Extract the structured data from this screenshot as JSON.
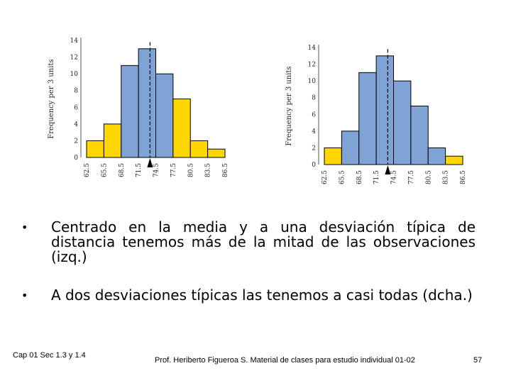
{
  "chart_data": [
    {
      "type": "bar",
      "ylabel": "Frequency per 3 units",
      "ylim": [
        0,
        14
      ],
      "yticks": [
        "0",
        "2",
        "4",
        "6",
        "8",
        "10",
        "12",
        "14"
      ],
      "edges": [
        "62.5",
        "65.5",
        "68.5",
        "71.5",
        "74.5",
        "77.5",
        "80.5",
        "83.5",
        "86.5"
      ],
      "values": [
        2,
        4,
        11,
        13,
        10,
        7,
        2,
        1
      ],
      "highlight": [
        false,
        false,
        true,
        true,
        true,
        false,
        false,
        false
      ],
      "mean": 73.5,
      "marker_label": "74.5",
      "colors": {
        "highlight": "#7fa3d4",
        "other": "#ffd700"
      }
    },
    {
      "type": "bar",
      "ylabel": "Frequency per 3 units",
      "ylim": [
        0,
        14
      ],
      "yticks": [
        "0",
        "2",
        "4",
        "6",
        "8",
        "10",
        "12",
        "14"
      ],
      "edges": [
        "62.5",
        "65.5",
        "68.5",
        "71.5",
        "74.5",
        "77.5",
        "80.5",
        "83.5",
        "86.5"
      ],
      "values": [
        2,
        4,
        11,
        13,
        10,
        7,
        2,
        1
      ],
      "highlight": [
        false,
        true,
        true,
        true,
        true,
        true,
        true,
        false
      ],
      "mean": 73.5,
      "marker_label": "74.5",
      "colors": {
        "highlight": "#7fa3d4",
        "other": "#ffd700"
      }
    }
  ],
  "bullets": [
    "Centrado en la media y a una desviación típica de distancia tenemos más de la mitad de las observaciones (izq.)",
    "A dos desviaciones típicas las tenemos a casi todas (dcha.)"
  ],
  "footer": {
    "left": "Cap 01 Sec 1.3 y 1.4",
    "center": "Prof. Heriberto Figueroa S. Material de clases para estudio individual 01-02",
    "page": "57"
  }
}
